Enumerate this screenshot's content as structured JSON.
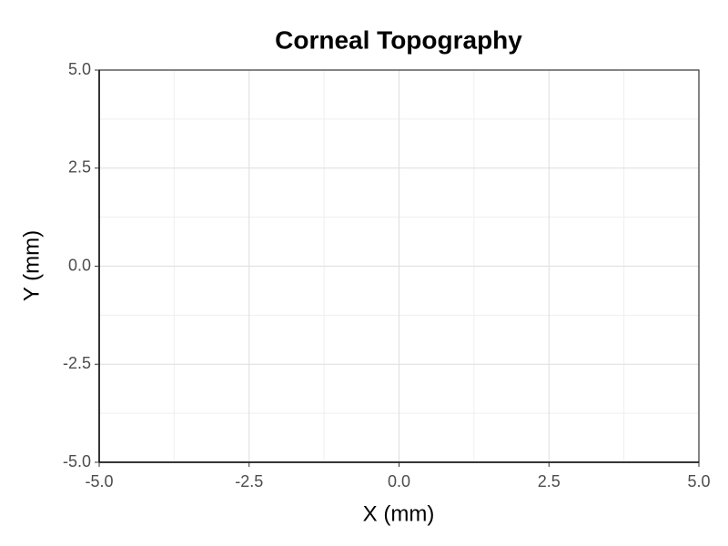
{
  "chart_data": {
    "type": "scatter",
    "title": "Corneal Topography",
    "x_label": "X (mm)",
    "y_label": "Y (mm)",
    "xlim": [
      -5,
      5
    ],
    "ylim": [
      -5,
      5
    ],
    "xticks": [
      {
        "value": -5,
        "label": "-5.0"
      },
      -2.5,
      {
        "value": 0,
        "label": "0.0"
      },
      2.5,
      {
        "value": 5,
        "label": "5.0"
      }
    ],
    "yticks": [
      {
        "value": -5,
        "label": "-5.0"
      },
      -2.5,
      {
        "value": 0,
        "label": "0.0"
      },
      2.5,
      {
        "value": 5,
        "label": "5.0"
      }
    ],
    "grid": true
  }
}
